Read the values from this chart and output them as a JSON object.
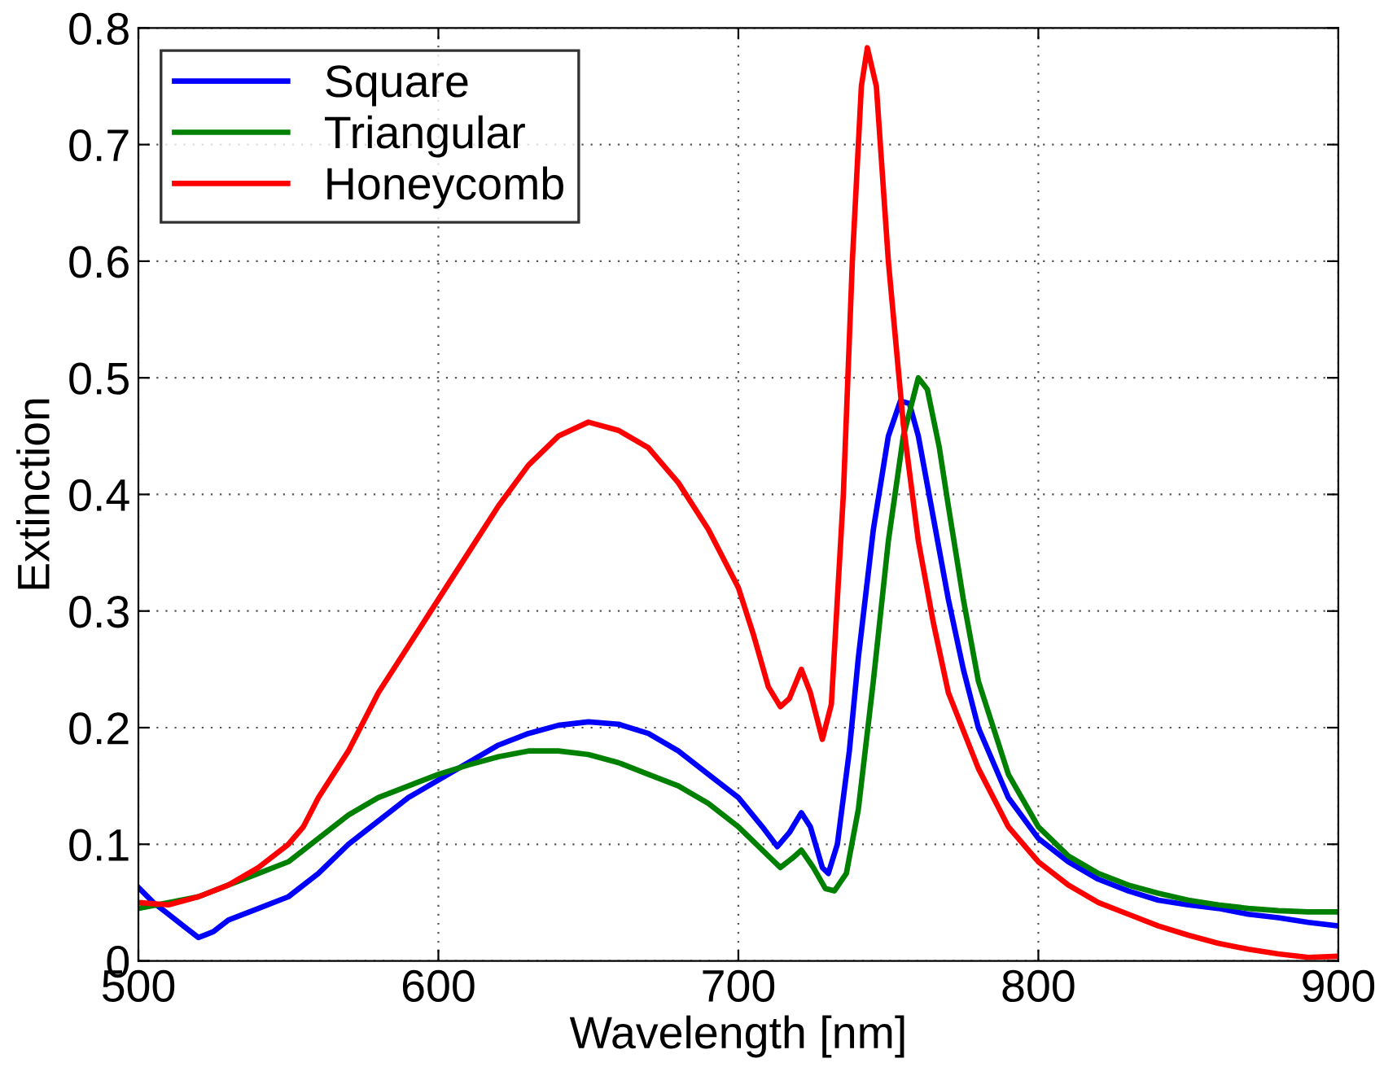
{
  "chart_data": {
    "type": "line",
    "xlabel": "Wavelength [nm]",
    "ylabel": "Extinction",
    "xlim": [
      500,
      900
    ],
    "ylim": [
      0,
      0.8
    ],
    "xticks": [
      500,
      600,
      700,
      800,
      900
    ],
    "yticks": [
      0,
      0.1,
      0.2,
      0.3,
      0.4,
      0.5,
      0.6,
      0.7,
      0.8
    ],
    "grid": true,
    "legend": "top left",
    "line_style": "solid",
    "marker": "none",
    "series": [
      {
        "name": "Square",
        "color": "#0000ff",
        "x": [
          500,
          505,
          510,
          515,
          520,
          525,
          530,
          540,
          550,
          560,
          570,
          580,
          590,
          600,
          610,
          620,
          630,
          640,
          650,
          660,
          670,
          680,
          690,
          700,
          708,
          713,
          717,
          721,
          724,
          728,
          730,
          733,
          737,
          740,
          745,
          750,
          754,
          757,
          760,
          765,
          770,
          775,
          780,
          790,
          800,
          810,
          820,
          830,
          840,
          850,
          860,
          870,
          880,
          890,
          900
        ],
        "values": [
          0.063,
          0.05,
          0.04,
          0.03,
          0.02,
          0.025,
          0.035,
          0.045,
          0.055,
          0.075,
          0.1,
          0.12,
          0.14,
          0.155,
          0.17,
          0.185,
          0.195,
          0.202,
          0.205,
          0.203,
          0.195,
          0.18,
          0.16,
          0.14,
          0.115,
          0.098,
          0.11,
          0.127,
          0.115,
          0.08,
          0.075,
          0.1,
          0.18,
          0.26,
          0.37,
          0.45,
          0.48,
          0.478,
          0.45,
          0.38,
          0.31,
          0.25,
          0.2,
          0.14,
          0.105,
          0.085,
          0.07,
          0.06,
          0.052,
          0.048,
          0.045,
          0.04,
          0.037,
          0.033,
          0.03
        ]
      },
      {
        "name": "Triangular",
        "color": "#008000",
        "x": [
          500,
          510,
          520,
          530,
          540,
          550,
          560,
          570,
          580,
          590,
          600,
          610,
          620,
          630,
          640,
          650,
          660,
          670,
          680,
          690,
          700,
          710,
          714,
          718,
          721,
          725,
          729,
          732,
          736,
          740,
          745,
          750,
          755,
          760,
          763,
          767,
          770,
          775,
          780,
          790,
          800,
          810,
          820,
          830,
          840,
          850,
          860,
          870,
          880,
          890,
          900
        ],
        "values": [
          0.045,
          0.05,
          0.055,
          0.065,
          0.075,
          0.085,
          0.105,
          0.125,
          0.14,
          0.15,
          0.16,
          0.168,
          0.175,
          0.18,
          0.18,
          0.177,
          0.17,
          0.16,
          0.15,
          0.135,
          0.115,
          0.09,
          0.08,
          0.088,
          0.095,
          0.08,
          0.062,
          0.06,
          0.075,
          0.13,
          0.24,
          0.36,
          0.45,
          0.5,
          0.49,
          0.44,
          0.39,
          0.31,
          0.24,
          0.16,
          0.115,
          0.09,
          0.075,
          0.065,
          0.058,
          0.052,
          0.048,
          0.045,
          0.043,
          0.042,
          0.042
        ]
      },
      {
        "name": "Honeycomb",
        "color": "#ff0000",
        "x": [
          500,
          510,
          520,
          530,
          540,
          550,
          555,
          560,
          570,
          580,
          590,
          600,
          610,
          620,
          630,
          640,
          650,
          660,
          670,
          680,
          690,
          700,
          705,
          710,
          714,
          717,
          721,
          724,
          728,
          731,
          735,
          738,
          741,
          743,
          746,
          750,
          755,
          760,
          765,
          770,
          780,
          790,
          800,
          810,
          820,
          830,
          840,
          850,
          860,
          870,
          880,
          890,
          900
        ],
        "values": [
          0.05,
          0.048,
          0.055,
          0.065,
          0.08,
          0.1,
          0.115,
          0.14,
          0.18,
          0.23,
          0.27,
          0.31,
          0.35,
          0.39,
          0.425,
          0.45,
          0.462,
          0.455,
          0.44,
          0.41,
          0.37,
          0.32,
          0.28,
          0.235,
          0.218,
          0.225,
          0.25,
          0.23,
          0.19,
          0.22,
          0.4,
          0.6,
          0.75,
          0.783,
          0.75,
          0.6,
          0.46,
          0.36,
          0.29,
          0.23,
          0.165,
          0.115,
          0.085,
          0.065,
          0.05,
          0.04,
          0.03,
          0.022,
          0.015,
          0.01,
          0.006,
          0.003,
          0.004
        ]
      }
    ]
  }
}
